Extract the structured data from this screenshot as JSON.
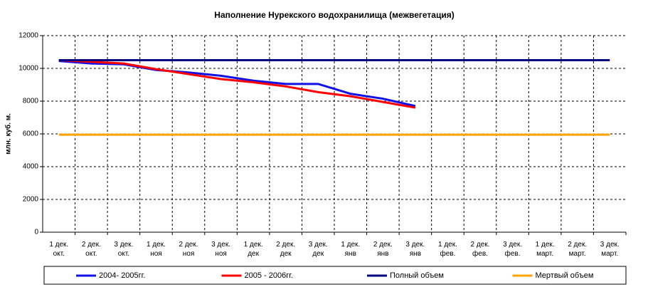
{
  "chart_data": {
    "type": "line",
    "title": "Наполнение Нурекского водохранилища (межвегетация)",
    "y_label": "млн. куб. м.",
    "categories": [
      "1 дек. окт.",
      "2 дек. окт.",
      "3 дек. окт.",
      "1 дек. ноя",
      "2 дек. ноя",
      "3 дек. ноя",
      "1 дек. дек",
      "2 дек. дек",
      "3 дек. дек",
      "1 дек. янв",
      "2 дек. янв",
      "3 дек. янв",
      "1 дек. фев.",
      "2 дек. фев.",
      "3 дек. фев.",
      "1 дек. март.",
      "2 дек. март.",
      "3 дек. март."
    ],
    "series": [
      {
        "name": "2004- 2005гг.",
        "color": "#1010e8",
        "values": [
          10450,
          10300,
          10250,
          9900,
          9750,
          9550,
          9250,
          9050,
          9050,
          8450,
          8150,
          7700,
          null,
          null,
          null,
          null,
          null,
          null
        ]
      },
      {
        "name": "2005 - 2006гг.",
        "color": "#ff0000",
        "values": [
          10500,
          10400,
          10300,
          9950,
          9650,
          9350,
          9150,
          8900,
          8550,
          8300,
          7950,
          7600,
          null,
          null,
          null,
          null,
          null,
          null
        ]
      },
      {
        "name": "Полный объем",
        "color": "#000080",
        "values": [
          10500,
          10500,
          10500,
          10500,
          10500,
          10500,
          10500,
          10500,
          10500,
          10500,
          10500,
          10500,
          10500,
          10500,
          10500,
          10500,
          10500,
          10500
        ]
      },
      {
        "name": "Мертвый объем",
        "color": "#ffa500",
        "values": [
          5950,
          5950,
          5950,
          5950,
          5950,
          5950,
          5950,
          5950,
          5950,
          5950,
          5950,
          5950,
          5950,
          5950,
          5950,
          5950,
          5950,
          5950
        ]
      }
    ],
    "ylim": [
      0,
      12000
    ],
    "yticks": [
      0,
      2000,
      4000,
      6000,
      8000,
      10000,
      12000
    ],
    "grid": true,
    "legend": "bottom"
  }
}
